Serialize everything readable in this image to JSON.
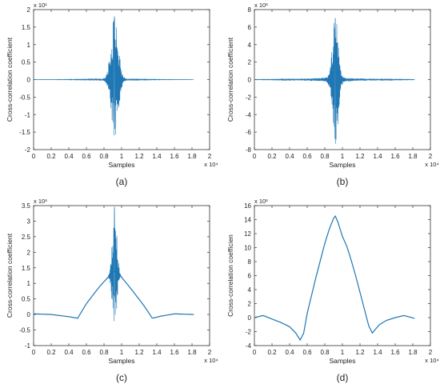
{
  "colors": {
    "trace": "#1f77b4",
    "axis": "#333333",
    "text": "#222222"
  },
  "chart_data": [
    {
      "type": "line",
      "panel_label": "(a)",
      "xlabel": "Samples",
      "ylabel": "Cross-correlation coefficient",
      "x_multiplier": "x 10⁴",
      "y_multiplier": "x 10¹",
      "xlim": [
        0,
        2
      ],
      "ylim": [
        -2,
        2
      ],
      "xticks": [
        0,
        0.2,
        0.4,
        0.6,
        0.8,
        1,
        1.2,
        1.4,
        1.6,
        1.8,
        2
      ],
      "yticks": [
        -2,
        -1.5,
        -1,
        -0.5,
        0,
        0.5,
        1,
        1.5,
        2
      ],
      "xtick_labels": [
        "0",
        "0.2",
        "0.4",
        "0.6",
        "0.8",
        "1",
        "1.2",
        "1.4",
        "1.6",
        "1.8",
        "2"
      ],
      "ytick_labels": [
        "-2",
        "-1.5",
        "-1",
        "-0.5",
        "0",
        "0.5",
        "1",
        "1.5",
        "2"
      ],
      "series": [
        {
          "x_range": [
            0.0,
            1.82
          ],
          "baseline": 0,
          "peak_x": 0.92,
          "peak_value": 1.8,
          "min_value": -1.65,
          "burst_width": 0.13,
          "sidelobe": 0.06
        }
      ]
    },
    {
      "type": "line",
      "panel_label": "(b)",
      "xlabel": "Samples",
      "ylabel": "Cross-correlation coefficient",
      "x_multiplier": "x 10⁴",
      "y_multiplier": "x 10³",
      "xlim": [
        0,
        2
      ],
      "ylim": [
        -8,
        8
      ],
      "xticks": [
        0,
        0.2,
        0.4,
        0.6,
        0.8,
        1,
        1.2,
        1.4,
        1.6,
        1.8,
        2
      ],
      "yticks": [
        -8,
        -6,
        -4,
        -2,
        0,
        2,
        4,
        6,
        8
      ],
      "xtick_labels": [
        "0",
        "0.2",
        "0.4",
        "0.6",
        "0.8",
        "1",
        "1.2",
        "1.4",
        "1.6",
        "1.8",
        "2"
      ],
      "ytick_labels": [
        "-8",
        "-6",
        "-4",
        "-2",
        "0",
        "2",
        "4",
        "6",
        "8"
      ],
      "series": [
        {
          "x_range": [
            0.0,
            1.82
          ],
          "baseline": 0,
          "peak_x": 0.92,
          "peak_value": 7.0,
          "min_value": -7.4,
          "burst_width": 0.1,
          "sidelobe": 0.15
        }
      ]
    },
    {
      "type": "line",
      "panel_label": "(c)",
      "xlabel": "Samples",
      "ylabel": "Cross-correlation coefficient",
      "x_multiplier": "x 10⁴",
      "y_multiplier": "x 10³",
      "xlim": [
        0,
        2
      ],
      "ylim": [
        -1,
        3.5
      ],
      "xticks": [
        0,
        0.2,
        0.4,
        0.6,
        0.8,
        1,
        1.2,
        1.4,
        1.6,
        1.8,
        2
      ],
      "yticks": [
        -1,
        -0.5,
        0,
        0.5,
        1,
        1.5,
        2,
        2.5,
        3,
        3.5
      ],
      "xtick_labels": [
        "0",
        "0.2",
        "0.4",
        "0.6",
        "0.8",
        "1",
        "1.2",
        "1.4",
        "1.6",
        "1.8",
        "2"
      ],
      "ytick_labels": [
        "-1",
        "-0.5",
        "0",
        "0.5",
        "1",
        "1.5",
        "2",
        "2.5",
        "3",
        "3.5"
      ],
      "series": [
        {
          "x_range": [
            0.0,
            1.82
          ],
          "envelope": [
            [
              0,
              0.02
            ],
            [
              0.2,
              0.0
            ],
            [
              0.4,
              -0.07
            ],
            [
              0.5,
              -0.12
            ],
            [
              0.6,
              0.35
            ],
            [
              0.75,
              0.9
            ],
            [
              0.88,
              1.3
            ],
            [
              0.92,
              1.4
            ],
            [
              0.97,
              1.3
            ],
            [
              1.1,
              0.85
            ],
            [
              1.25,
              0.3
            ],
            [
              1.35,
              -0.12
            ],
            [
              1.45,
              -0.05
            ],
            [
              1.6,
              0.02
            ],
            [
              1.82,
              0.0
            ]
          ],
          "peak_x": 0.92,
          "peak_value": 3.45,
          "min_value": -0.6,
          "burst_width": 0.08
        }
      ]
    },
    {
      "type": "line",
      "panel_label": "(d)",
      "xlabel": "Samples",
      "ylabel": "Cross-correlation coefficien",
      "x_multiplier": "x 10⁴",
      "y_multiplier": "x 10³",
      "xlim": [
        0,
        2
      ],
      "ylim": [
        -4,
        16
      ],
      "xticks": [
        0,
        0.2,
        0.4,
        0.6,
        0.8,
        1,
        1.2,
        1.4,
        1.6,
        1.8,
        2
      ],
      "yticks": [
        -4,
        -2,
        0,
        2,
        4,
        6,
        8,
        10,
        12,
        14,
        16
      ],
      "xtick_labels": [
        "0",
        "0.2",
        "0.4",
        "0.6",
        "0.8",
        "1",
        "1.2",
        "1.4",
        "1.6",
        "1.8",
        "2"
      ],
      "ytick_labels": [
        "-4",
        "-2",
        "0",
        "2",
        "4",
        "6",
        "8",
        "10",
        "12",
        "14",
        "16"
      ],
      "series": [
        {
          "x_range": [
            0.0,
            1.82
          ],
          "points": [
            [
              0,
              0.0
            ],
            [
              0.1,
              0.3
            ],
            [
              0.2,
              -0.2
            ],
            [
              0.3,
              -0.7
            ],
            [
              0.4,
              -1.3
            ],
            [
              0.47,
              -2.2
            ],
            [
              0.52,
              -3.2
            ],
            [
              0.56,
              -2.2
            ],
            [
              0.6,
              0.6
            ],
            [
              0.65,
              3.2
            ],
            [
              0.7,
              5.8
            ],
            [
              0.75,
              8.2
            ],
            [
              0.8,
              10.6
            ],
            [
              0.85,
              12.6
            ],
            [
              0.9,
              14.2
            ],
            [
              0.92,
              14.5
            ],
            [
              0.95,
              13.6
            ],
            [
              1.0,
              11.6
            ],
            [
              1.05,
              10.2
            ],
            [
              1.1,
              8.2
            ],
            [
              1.15,
              6.0
            ],
            [
              1.2,
              3.6
            ],
            [
              1.25,
              1.2
            ],
            [
              1.3,
              -1.2
            ],
            [
              1.34,
              -2.2
            ],
            [
              1.38,
              -1.6
            ],
            [
              1.42,
              -1.0
            ],
            [
              1.5,
              -0.4
            ],
            [
              1.6,
              0.0
            ],
            [
              1.7,
              0.3
            ],
            [
              1.82,
              -0.1
            ]
          ]
        }
      ]
    }
  ]
}
